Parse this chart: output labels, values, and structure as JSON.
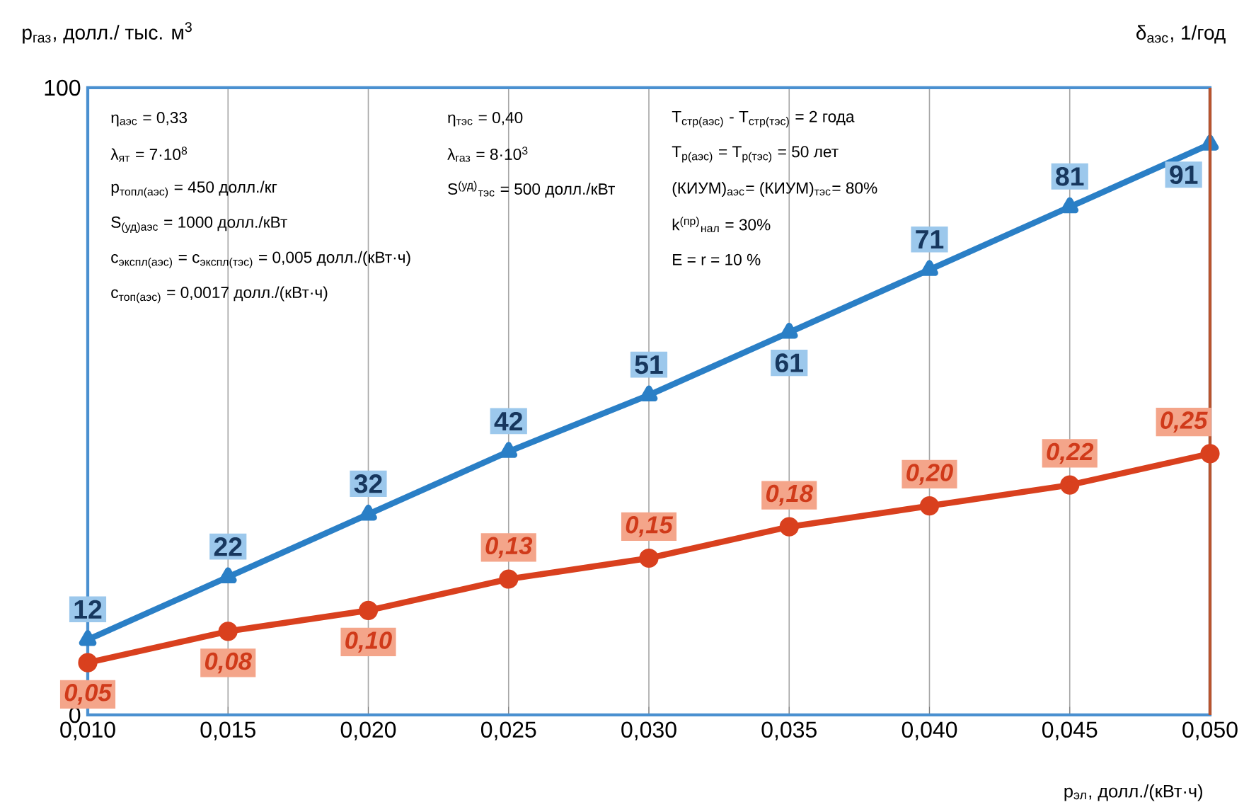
{
  "chart_data": {
    "type": "line",
    "xlabel": "p$_{эл}$, долл./(кВт·ч)",
    "ylabel": "p$_{газ}$, долл./ тыс. м$^{3}$",
    "y2label": "δ$_{аэс}$, 1/год",
    "x": [
      0.01,
      0.015,
      0.02,
      0.025,
      0.03,
      0.035,
      0.04,
      0.045,
      0.05
    ],
    "series": [
      {
        "color": "#2a7fc6",
        "marker": "triangle",
        "values": [
          12,
          22,
          32,
          42,
          51,
          61,
          71,
          81,
          91
        ],
        "value_labels": [
          "12",
          "22",
          "32",
          "42",
          "51",
          "61",
          "71",
          "81",
          "91"
        ]
      },
      {
        "color": "#d9401e",
        "marker": "circle",
        "axis": "y2",
        "values": [
          0.05,
          0.08,
          0.1,
          0.13,
          0.15,
          0.18,
          0.2,
          0.22,
          0.25
        ],
        "value_labels": [
          "0,05",
          "0,08",
          "0,10",
          "0,13",
          "0,15",
          "0,18",
          "0,20",
          "0,22",
          "0,25"
        ]
      }
    ],
    "xlim": [
      0.01,
      0.05
    ],
    "xticks": [
      {
        "value": 0.01,
        "label": "0,010"
      },
      {
        "value": 0.015,
        "label": "0,015"
      },
      {
        "value": 0.02,
        "label": "0,020"
      },
      {
        "value": 0.025,
        "label": "0,025"
      },
      {
        "value": 0.03,
        "label": "0,030"
      },
      {
        "value": 0.035,
        "label": "0,035"
      },
      {
        "value": 0.04,
        "label": "0,040"
      },
      {
        "value": 0.045,
        "label": "0,045"
      },
      {
        "value": 0.05,
        "label": "0,050"
      }
    ],
    "ylim": [
      0,
      100
    ],
    "yticks": [
      0,
      100
    ],
    "y2lim": [
      0,
      0.6
    ],
    "tick_labels": "xy",
    "grid": "x",
    "annotations": [
      "η$_{аэс}$ = 0,33",
      "λ$_{ят}$ = 7·10$^{8}$",
      "p$_{топл(аэс)}$ = 450 долл./кг",
      "S$_{(уд)аэс}$ = 1000 долл./кВт",
      "c$_{экспл(аэс)}$ = c$_{экспл(тэс)}$ = 0,005 долл./(кВт·ч)",
      "c$_{топ(аэс)}$ = 0,0017 долл./(кВт·ч)",
      "η$_{тэс}$ = 0,40",
      "λ$_{газ}$ = 8·10$^{3}$",
      "S$^{(уд)}$$_{тэс}$ = 500 долл./кВт",
      "T$_{стр(аэс)}$ - T$_{стр(тэс)}$ = 2 года",
      "T$_{р(аэс)}$ = T$_{р(тэс)}$ = 50 лет",
      "(КИУМ)$_{аэс}$= (КИУМ)$_{тэс}$= 80%",
      "k$^{(пр)}$$_{нал}$ = 30%",
      "E = r = 10 %"
    ]
  }
}
